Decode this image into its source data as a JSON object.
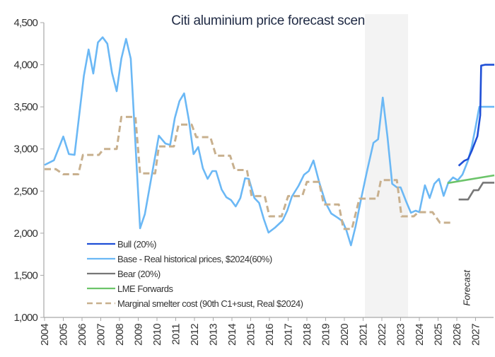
{
  "chart_data": {
    "type": "line",
    "title": "Citi aluminium price forecast scenarios",
    "xlabel": "",
    "ylabel": "",
    "xlim": [
      2004,
      2028
    ],
    "ylim": [
      1000,
      4500
    ],
    "yticks": [
      1000,
      1500,
      2000,
      2500,
      3000,
      3500,
      4000,
      4500
    ],
    "ytick_labels": [
      "1,000",
      "1,500",
      "2,000",
      "2,500",
      "3,000",
      "3,500",
      "4,000",
      "4,500"
    ],
    "xticks": [
      2004,
      2005,
      2006,
      2007,
      2008,
      2009,
      2010,
      2011,
      2012,
      2013,
      2014,
      2015,
      2016,
      2017,
      2018,
      2019,
      2020,
      2021,
      2022,
      2023,
      2024,
      2025,
      2026,
      2027
    ],
    "xtick_labels": [
      "2004",
      "2005",
      "2006",
      "2007",
      "2008",
      "2009",
      "2010",
      "2011",
      "2012",
      "2013",
      "2014",
      "2015",
      "2016",
      "2017",
      "2018",
      "2019",
      "2020",
      "2021",
      "2022",
      "2023",
      "2024",
      "2025",
      "2026",
      "2027"
    ],
    "grid": false,
    "legend_position": "bottom-left",
    "shaded_region": {
      "x": [
        2021.1,
        2023.4
      ],
      "color": "#f3f3f3"
    },
    "annotations": [
      {
        "text": "Forecast",
        "x": 2026.7,
        "y": 1350,
        "rotation": -90
      }
    ],
    "series": [
      {
        "name": "Bull (20%)",
        "color": "#1f4fd6",
        "style": "solid",
        "points": [
          [
            2026.1,
            2800
          ],
          [
            2026.4,
            2860
          ],
          [
            2026.6,
            2880
          ],
          [
            2026.8,
            2980
          ],
          [
            2027.1,
            3150
          ],
          [
            2027.25,
            3400
          ],
          [
            2027.3,
            3990
          ],
          [
            2027.5,
            4000
          ],
          [
            2028.0,
            4000
          ]
        ]
      },
      {
        "name": "Base - Real historical prices, $2024(60%)",
        "color": "#6bb8f5",
        "style": "solid",
        "points": [
          [
            2004.0,
            2810
          ],
          [
            2004.5,
            2866
          ],
          [
            2005.0,
            3148
          ],
          [
            2005.3,
            2939
          ],
          [
            2005.6,
            2930
          ],
          [
            2006.1,
            3870
          ],
          [
            2006.35,
            4181
          ],
          [
            2006.6,
            3896
          ],
          [
            2006.85,
            4265
          ],
          [
            2007.1,
            4326
          ],
          [
            2007.35,
            4250
          ],
          [
            2007.6,
            3904
          ],
          [
            2007.85,
            3686
          ],
          [
            2008.1,
            4072
          ],
          [
            2008.35,
            4307
          ],
          [
            2008.6,
            4072
          ],
          [
            2009.1,
            2058
          ],
          [
            2009.35,
            2225
          ],
          [
            2010.1,
            3157
          ],
          [
            2010.45,
            3065
          ],
          [
            2010.7,
            3048
          ],
          [
            2010.95,
            3367
          ],
          [
            2011.2,
            3568
          ],
          [
            2011.45,
            3660
          ],
          [
            2011.7,
            3342
          ],
          [
            2011.95,
            2939
          ],
          [
            2012.2,
            3023
          ],
          [
            2012.45,
            2771
          ],
          [
            2012.7,
            2645
          ],
          [
            2012.95,
            2737
          ],
          [
            2013.15,
            2737
          ],
          [
            2013.45,
            2519
          ],
          [
            2013.7,
            2427
          ],
          [
            2013.95,
            2393
          ],
          [
            2014.2,
            2318
          ],
          [
            2014.45,
            2418
          ],
          [
            2014.7,
            2653
          ],
          [
            2014.9,
            2645
          ],
          [
            2015.2,
            2418
          ],
          [
            2015.45,
            2360
          ],
          [
            2015.7,
            2167
          ],
          [
            2015.95,
            2007
          ],
          [
            2016.3,
            2066
          ],
          [
            2016.7,
            2150
          ],
          [
            2016.95,
            2267
          ],
          [
            2017.2,
            2435
          ],
          [
            2017.55,
            2561
          ],
          [
            2017.85,
            2695
          ],
          [
            2018.1,
            2737
          ],
          [
            2018.35,
            2863
          ],
          [
            2018.65,
            2611
          ],
          [
            2019.0,
            2360
          ],
          [
            2019.3,
            2234
          ],
          [
            2019.65,
            2183
          ],
          [
            2019.9,
            2141
          ],
          [
            2020.1,
            2041
          ],
          [
            2020.35,
            1856
          ],
          [
            2020.6,
            2083
          ],
          [
            2020.9,
            2418
          ],
          [
            2021.2,
            2729
          ],
          [
            2021.55,
            3073
          ],
          [
            2021.8,
            3115
          ],
          [
            2022.05,
            3610
          ],
          [
            2022.3,
            3149
          ],
          [
            2022.55,
            2586
          ],
          [
            2022.8,
            2544
          ],
          [
            2023.0,
            2544
          ],
          [
            2023.3,
            2376
          ],
          [
            2023.55,
            2242
          ],
          [
            2023.8,
            2267
          ],
          [
            2024.0,
            2250
          ],
          [
            2024.3,
            2569
          ],
          [
            2024.55,
            2418
          ],
          [
            2024.8,
            2586
          ],
          [
            2025.05,
            2645
          ],
          [
            2025.3,
            2443
          ],
          [
            2025.55,
            2603
          ],
          [
            2025.8,
            2662
          ],
          [
            2026.05,
            2628
          ],
          [
            2026.3,
            2695
          ],
          [
            2026.6,
            2863
          ],
          [
            2026.8,
            3031
          ],
          [
            2027.0,
            3258
          ],
          [
            2027.2,
            3500
          ],
          [
            2027.5,
            3500
          ],
          [
            2028.0,
            3500
          ]
        ]
      },
      {
        "name": "Bear (20%)",
        "color": "#777777",
        "style": "solid",
        "points": [
          [
            2026.1,
            2400
          ],
          [
            2026.6,
            2400
          ],
          [
            2026.9,
            2510
          ],
          [
            2027.15,
            2510
          ],
          [
            2027.4,
            2600
          ],
          [
            2028.0,
            2600
          ]
        ]
      },
      {
        "name": "LME Forwards",
        "color": "#6cc46a",
        "style": "solid",
        "points": [
          [
            2025.5,
            2595
          ],
          [
            2028.0,
            2687
          ]
        ]
      },
      {
        "name": "Marginal smelter cost (90th C1+sust, Real $2024)",
        "color": "#c8b08e",
        "style": "dashed",
        "points": [
          [
            2004.0,
            2760
          ],
          [
            2004.6,
            2760
          ],
          [
            2005.0,
            2700
          ],
          [
            2005.8,
            2700
          ],
          [
            2006.05,
            2930
          ],
          [
            2006.9,
            2930
          ],
          [
            2007.15,
            3000
          ],
          [
            2007.85,
            3000
          ],
          [
            2008.1,
            3380
          ],
          [
            2008.85,
            3380
          ],
          [
            2009.1,
            2710
          ],
          [
            2009.9,
            2710
          ],
          [
            2010.1,
            3030
          ],
          [
            2010.9,
            3030
          ],
          [
            2011.15,
            3290
          ],
          [
            2011.85,
            3290
          ],
          [
            2012.1,
            3140
          ],
          [
            2012.85,
            3140
          ],
          [
            2013.15,
            2920
          ],
          [
            2013.9,
            2920
          ],
          [
            2014.15,
            2750
          ],
          [
            2014.8,
            2750
          ],
          [
            2015.05,
            2440
          ],
          [
            2015.75,
            2440
          ],
          [
            2016.0,
            2200
          ],
          [
            2016.65,
            2200
          ],
          [
            2017.0,
            2440
          ],
          [
            2017.75,
            2440
          ],
          [
            2018.0,
            2610
          ],
          [
            2018.65,
            2610
          ],
          [
            2018.9,
            2340
          ],
          [
            2019.7,
            2340
          ],
          [
            2019.95,
            2050
          ],
          [
            2020.4,
            2050
          ],
          [
            2020.8,
            2410
          ],
          [
            2021.75,
            2410
          ],
          [
            2021.95,
            2630
          ],
          [
            2022.8,
            2630
          ],
          [
            2023.05,
            2200
          ],
          [
            2023.7,
            2200
          ],
          [
            2023.95,
            2250
          ],
          [
            2024.7,
            2250
          ],
          [
            2025.1,
            2125
          ],
          [
            2025.8,
            2125
          ]
        ]
      }
    ]
  }
}
